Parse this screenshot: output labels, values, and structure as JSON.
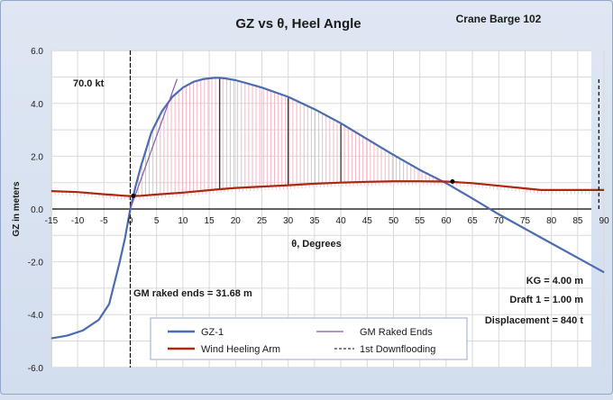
{
  "chart_data": {
    "type": "line",
    "title": "GZ vs θ, Heel Angle",
    "subtitle": "Crane Barge 102",
    "xlabel": "θ, Degrees",
    "ylabel": "GZ in meters",
    "xlim": [
      -15,
      90
    ],
    "ylim": [
      -6,
      6
    ],
    "xticks": [
      "-15",
      "-10",
      "-5",
      "0",
      "5",
      "10",
      "15",
      "20",
      "25",
      "30",
      "35",
      "40",
      "45",
      "50",
      "55",
      "60",
      "65",
      "70",
      "75",
      "80",
      "85",
      "90"
    ],
    "yticks": [
      "6.0",
      "4.0",
      "2.0",
      "0.0",
      "-2.0",
      "-4.0",
      "-6.0"
    ],
    "grid": true,
    "series": [
      {
        "name": "GZ-1",
        "color": "#4a6cb0",
        "style": "solid",
        "x": [
          -15,
          -12,
          -9,
          -6,
          -4,
          -2,
          -1,
          0,
          1,
          2,
          4,
          6,
          8,
          10,
          12,
          14,
          16,
          17,
          18,
          20,
          22,
          25,
          30,
          35,
          40,
          45,
          50,
          55,
          60,
          65,
          70,
          75,
          80,
          85,
          90
        ],
        "y": [
          -4.9,
          -4.8,
          -4.6,
          -4.2,
          -3.6,
          -2.0,
          -1.1,
          0.0,
          0.85,
          1.6,
          2.9,
          3.7,
          4.25,
          4.6,
          4.82,
          4.93,
          4.97,
          4.97,
          4.95,
          4.88,
          4.77,
          4.6,
          4.25,
          3.78,
          3.25,
          2.65,
          2.05,
          1.48,
          0.98,
          0.4,
          -0.2,
          -0.75,
          -1.3,
          -1.85,
          -2.4
        ]
      },
      {
        "name": "GM Raked Ends",
        "color": "#8a5aa8",
        "style": "solid",
        "x": [
          0,
          8.9
        ],
        "y": [
          0,
          4.93
        ]
      },
      {
        "name": "Wind Heeling Arm",
        "color": "#a82810",
        "style": "solid",
        "x": [
          -15,
          -10,
          -5,
          -1,
          0,
          2,
          5,
          10,
          17,
          20,
          30,
          35,
          40,
          45,
          50,
          55,
          60,
          65,
          70,
          75,
          78,
          80,
          85,
          90
        ],
        "y": [
          0.68,
          0.64,
          0.56,
          0.5,
          0.49,
          0.5,
          0.55,
          0.62,
          0.75,
          0.8,
          0.9,
          0.96,
          1.0,
          1.03,
          1.05,
          1.05,
          1.04,
          0.98,
          0.88,
          0.78,
          0.72,
          0.72,
          0.72,
          0.72
        ]
      },
      {
        "name": "1st Downflooding",
        "color": "#000000",
        "style": "dashed",
        "x": [
          89,
          89
        ],
        "y": [
          0,
          5
        ]
      }
    ],
    "markers": [
      {
        "label": "70.0 kt",
        "x": -11,
        "y": 4.75
      },
      {
        "label": "GM  raked ends = 31.68 m",
        "x": -0.5,
        "y": -3.25
      }
    ]
  },
  "info": {
    "kg": "KG  = 4.00 m",
    "draft": "Draft 1 = 1.00 m",
    "displacement": "Displacement = 840 t"
  },
  "legend": {
    "items": [
      "GZ-1",
      "GM Raked Ends",
      "Wind Heeling Arm",
      "1st Downflooding"
    ]
  }
}
